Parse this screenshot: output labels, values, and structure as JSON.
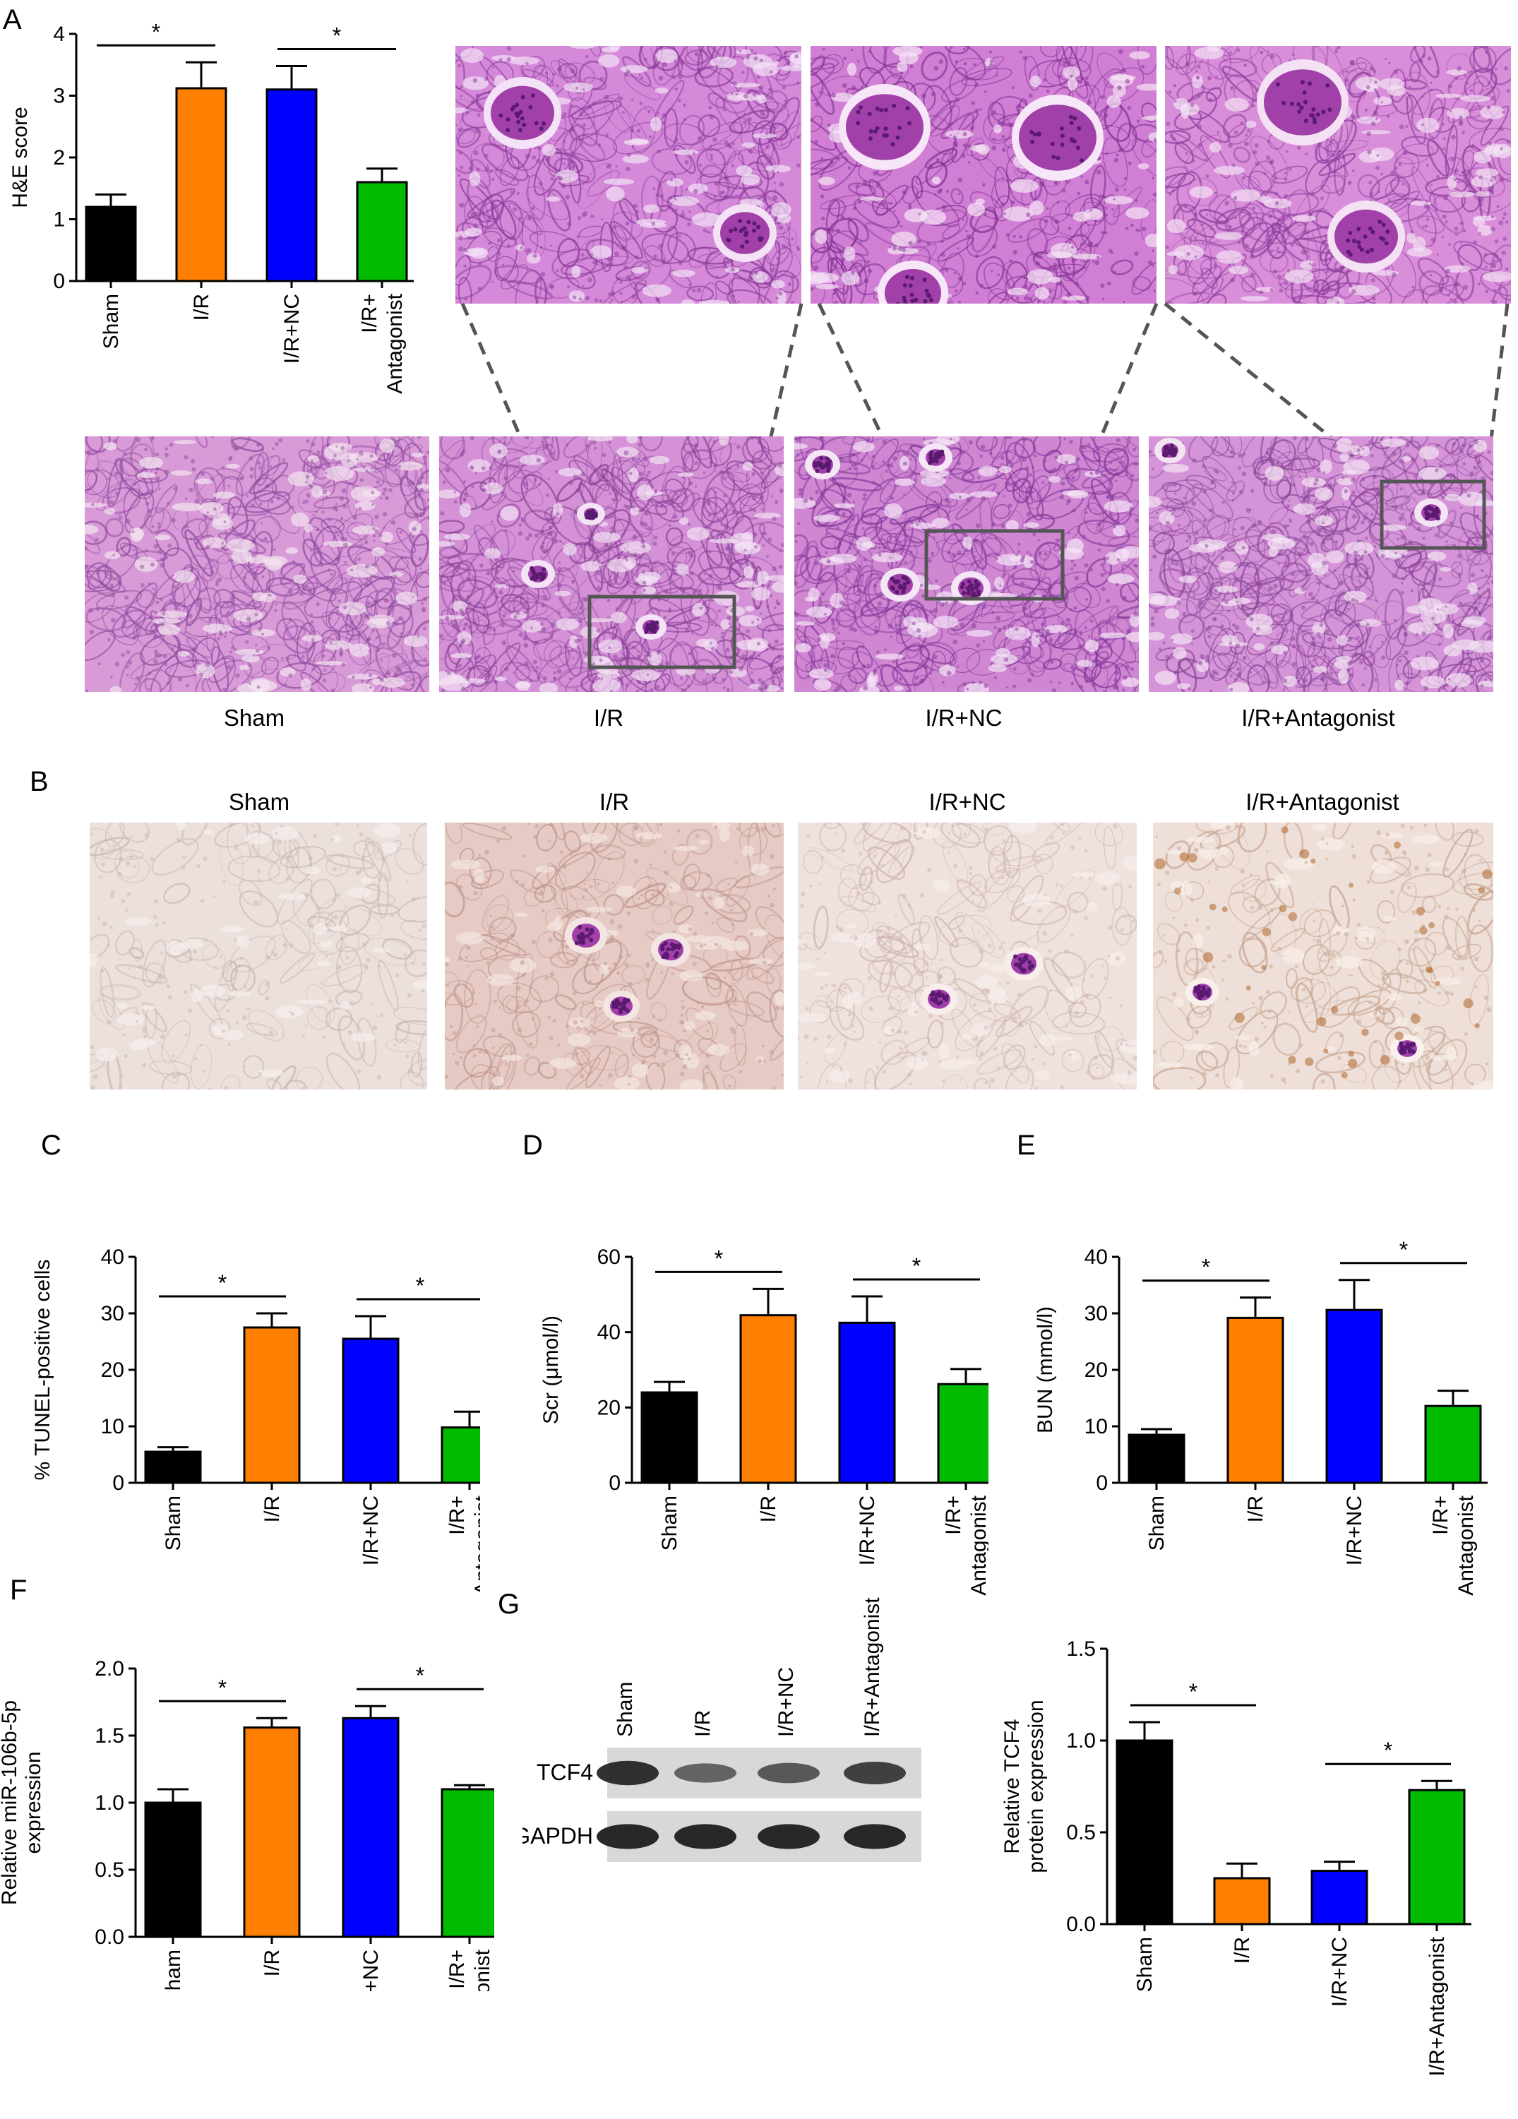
{
  "panels": {
    "A": "A",
    "B": "B",
    "C": "C",
    "D": "D",
    "E": "E",
    "F": "F",
    "G": "G"
  },
  "groups": [
    "Sham",
    "I/R",
    "I/R+NC",
    "I/R+Antagonist"
  ],
  "colors": {
    "Sham": "#000000",
    "I/R": "#ff7f00",
    "I/R+NC": "#0000ff",
    "I/R+Antagonist": "#00bb00",
    "he_stain": "#d77fd6",
    "tunel_stain": "#ecd3cc",
    "blot_band": "#222222"
  },
  "significance_mark": "*",
  "histology": {
    "he_labels": [
      "Sham",
      "I/R",
      "I/R+NC",
      "I/R+Antagonist"
    ],
    "tunel_labels": [
      "Sham",
      "I/R",
      "I/R+NC",
      "I/R+Antagonist"
    ]
  },
  "western_blot": {
    "lane_labels": [
      "Sham",
      "I/R",
      "I/R+NC",
      "I/R+Antagonist"
    ],
    "row_labels": [
      "TCF4",
      "GAPDH"
    ],
    "tcf4_intensity": [
      0.9,
      0.45,
      0.55,
      0.75
    ],
    "gapdh_intensity": [
      0.95,
      0.95,
      0.95,
      0.95
    ]
  },
  "chart_data": [
    {
      "id": "A",
      "type": "bar",
      "categories": [
        "Sham",
        "I/R",
        "I/R+NC",
        "I/R+\nAntagonist"
      ],
      "values": [
        1.2,
        3.12,
        3.1,
        1.6
      ],
      "errors": [
        0.2,
        0.42,
        0.38,
        0.22
      ],
      "ylabel": "H&E score",
      "ylim": [
        0,
        4
      ],
      "yticks": [
        "0",
        "1",
        "2",
        "3",
        "4"
      ],
      "significance": [
        [
          0,
          1
        ],
        [
          2,
          3
        ]
      ]
    },
    {
      "id": "C",
      "type": "bar",
      "categories": [
        "Sham",
        "I/R",
        "I/R+NC",
        "I/R+\nAntagonist"
      ],
      "values": [
        5.5,
        27.5,
        25.5,
        9.8
      ],
      "errors": [
        0.8,
        2.5,
        4.0,
        2.8
      ],
      "ylabel": "% TUNEL-positive cells",
      "ylim": [
        0,
        40
      ],
      "yticks": [
        "0",
        "10",
        "20",
        "30",
        "40"
      ],
      "significance": [
        [
          0,
          1
        ],
        [
          2,
          3
        ]
      ]
    },
    {
      "id": "D",
      "type": "bar",
      "categories": [
        "Sham",
        "I/R",
        "I/R+NC",
        "I/R+\nAntagonist"
      ],
      "values": [
        24,
        44.5,
        42.5,
        26.2
      ],
      "errors": [
        2.8,
        7.0,
        7.0,
        4.0
      ],
      "ylabel": "Scr (μmol/l)",
      "ylim": [
        0,
        60
      ],
      "yticks": [
        "0",
        "20",
        "40",
        "60"
      ],
      "significance": [
        [
          0,
          1
        ],
        [
          2,
          3
        ]
      ]
    },
    {
      "id": "E",
      "type": "bar",
      "categories": [
        "Sham",
        "I/R",
        "I/R+NC",
        "I/R+\nAntagonist"
      ],
      "values": [
        8.5,
        29.2,
        30.6,
        13.6
      ],
      "errors": [
        1.0,
        3.6,
        5.3,
        2.7
      ],
      "ylabel": "BUN (mmol/l)",
      "ylim": [
        0,
        40
      ],
      "yticks": [
        "0",
        "10",
        "20",
        "30",
        "40"
      ],
      "significance": [
        [
          0,
          1
        ],
        [
          2,
          3
        ]
      ]
    },
    {
      "id": "F",
      "type": "bar",
      "categories": [
        "Sham",
        "I/R",
        "I/R+NC",
        "I/R+\nAntagonist"
      ],
      "values": [
        1.0,
        1.56,
        1.63,
        1.1
      ],
      "errors": [
        0.1,
        0.07,
        0.09,
        0.03
      ],
      "ylabel": "Relative miR-106b-5p\nexpression",
      "ylim": [
        0,
        2.0
      ],
      "yticks": [
        "0.0",
        "0.5",
        "1.0",
        "1.5",
        "2.0"
      ],
      "significance": [
        [
          0,
          1
        ],
        [
          2,
          3
        ]
      ]
    },
    {
      "id": "G",
      "type": "bar",
      "categories": [
        "Sham",
        "I/R",
        "I/R+NC",
        "I/R+Antagonist"
      ],
      "values": [
        1.0,
        0.25,
        0.29,
        0.73
      ],
      "errors": [
        0.1,
        0.08,
        0.05,
        0.05
      ],
      "ylabel": "Relative TCF4\nprotein expression",
      "ylim": [
        0,
        1.5
      ],
      "yticks": [
        "0.0",
        "0.5",
        "1.0",
        "1.5"
      ],
      "significance": [
        [
          0,
          1
        ],
        [
          2,
          3
        ]
      ]
    }
  ]
}
